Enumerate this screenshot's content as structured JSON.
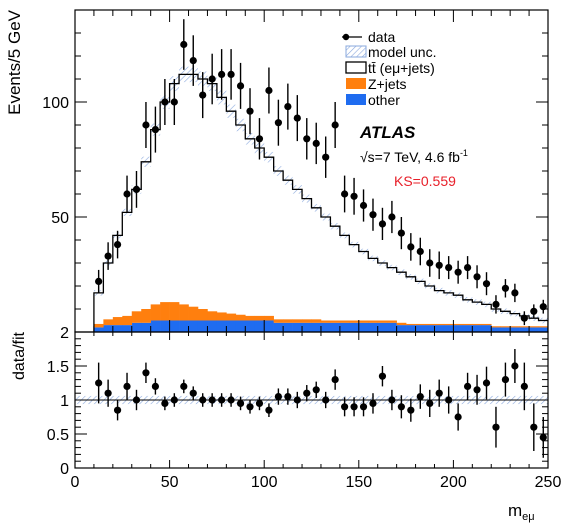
{
  "chart_data": [
    {
      "type": "line",
      "panel": "main",
      "ylabel": "Events/5 GeV",
      "xlim": [
        0,
        250
      ],
      "ylim": [
        0,
        140
      ],
      "yticks": [
        50,
        100
      ],
      "ytick_labels": [
        "50",
        "100"
      ],
      "bin_width": 5,
      "legend_placement": "top-right",
      "legend": [
        {
          "key": "data",
          "label": "data"
        },
        {
          "key": "unc",
          "label": "model unc."
        },
        {
          "key": "ttbar",
          "label": "tt̄ (eμ+jets)"
        },
        {
          "key": "zjets",
          "label": "Z+jets"
        },
        {
          "key": "other",
          "label": "other"
        }
      ],
      "annotations": {
        "experiment": "ATLAS",
        "energy_lumi": "√s=7 TeV, 4.6 fb",
        "lumi_exponent": "-1",
        "ks": "KS=0.559"
      },
      "colors": {
        "zjets": "#ff7f0e",
        "other": "#1f6cf0",
        "unc": "#8aa8dd",
        "data": "#000000"
      },
      "bin_edges_start": 10,
      "model": [
        17,
        30,
        42,
        52,
        62,
        74,
        88,
        100,
        108,
        112,
        112,
        110,
        108,
        102,
        96,
        90,
        84,
        80,
        76,
        70,
        66,
        62,
        58,
        54,
        50,
        46,
        42,
        38,
        35,
        32,
        30,
        28,
        26,
        24,
        22,
        20,
        18,
        17,
        16,
        14,
        13,
        12,
        10,
        9,
        8,
        7,
        6,
        5
      ],
      "zjets": [
        1.5,
        2.5,
        3.5,
        4,
        5,
        6,
        7,
        8,
        8,
        7,
        6,
        5,
        4,
        3.5,
        3,
        2.5,
        2,
        2,
        2,
        1.5,
        1.5,
        1.5,
        1.5,
        1.5,
        1,
        1,
        1,
        1,
        1,
        1,
        1,
        1,
        1,
        0.5,
        0.5,
        0.5,
        0.5,
        0.5,
        0.5,
        0.5,
        0.5,
        0.5,
        0.5,
        0.5,
        0.5,
        0.5,
        0.5,
        0.5
      ],
      "other": [
        2,
        3,
        3,
        3,
        4,
        4,
        5,
        5,
        5,
        5,
        5,
        5,
        5,
        5,
        5,
        5,
        5,
        5,
        5,
        4,
        4,
        4,
        4,
        4,
        4,
        4,
        4,
        4,
        4,
        4,
        4,
        4,
        3,
        3,
        3,
        3,
        3,
        3,
        3,
        3,
        3,
        3,
        2,
        2,
        2,
        2,
        2,
        2
      ],
      "data_points": [
        {
          "x": 12.5,
          "y": 22
        },
        {
          "x": 17.5,
          "y": 33
        },
        {
          "x": 22.5,
          "y": 38
        },
        {
          "x": 27.5,
          "y": 60
        },
        {
          "x": 32.5,
          "y": 62
        },
        {
          "x": 37.5,
          "y": 90
        },
        {
          "x": 42.5,
          "y": 88
        },
        {
          "x": 47.5,
          "y": 100
        },
        {
          "x": 52.5,
          "y": 100
        },
        {
          "x": 57.5,
          "y": 125
        },
        {
          "x": 62.5,
          "y": 118
        },
        {
          "x": 67.5,
          "y": 103
        },
        {
          "x": 72.5,
          "y": 110
        },
        {
          "x": 77.5,
          "y": 112
        },
        {
          "x": 82.5,
          "y": 112
        },
        {
          "x": 87.5,
          "y": 107
        },
        {
          "x": 92.5,
          "y": 96
        },
        {
          "x": 97.5,
          "y": 84
        },
        {
          "x": 102.5,
          "y": 105
        },
        {
          "x": 107.5,
          "y": 91
        },
        {
          "x": 112.5,
          "y": 98
        },
        {
          "x": 117.5,
          "y": 93
        },
        {
          "x": 122.5,
          "y": 84
        },
        {
          "x": 127.5,
          "y": 82
        },
        {
          "x": 132.5,
          "y": 76
        },
        {
          "x": 137.5,
          "y": 90
        },
        {
          "x": 142.5,
          "y": 60
        },
        {
          "x": 147.5,
          "y": 59
        },
        {
          "x": 152.5,
          "y": 55
        },
        {
          "x": 157.5,
          "y": 51
        },
        {
          "x": 162.5,
          "y": 47
        },
        {
          "x": 167.5,
          "y": 50
        },
        {
          "x": 172.5,
          "y": 43
        },
        {
          "x": 177.5,
          "y": 37
        },
        {
          "x": 182.5,
          "y": 35
        },
        {
          "x": 187.5,
          "y": 30
        },
        {
          "x": 192.5,
          "y": 29
        },
        {
          "x": 197.5,
          "y": 28
        },
        {
          "x": 202.5,
          "y": 26
        },
        {
          "x": 207.5,
          "y": 28
        },
        {
          "x": 212.5,
          "y": 24
        },
        {
          "x": 217.5,
          "y": 21
        },
        {
          "x": 222.5,
          "y": 12
        },
        {
          "x": 227.5,
          "y": 19
        },
        {
          "x": 232.5,
          "y": 17
        },
        {
          "x": 237.5,
          "y": 6
        },
        {
          "x": 242.5,
          "y": 9
        },
        {
          "x": 247.5,
          "y": 11
        }
      ],
      "data_errors": [
        5,
        6,
        6,
        8,
        8,
        10,
        10,
        10,
        10,
        11,
        11,
        10,
        11,
        11,
        11,
        10,
        10,
        9,
        10,
        10,
        10,
        10,
        9,
        9,
        9,
        10,
        8,
        8,
        7,
        7,
        7,
        7,
        7,
        6,
        6,
        6,
        6,
        5,
        5,
        5,
        5,
        5,
        4,
        4,
        4,
        3,
        3,
        3
      ]
    },
    {
      "type": "scatter",
      "panel": "ratio",
      "ylabel": "data/fit",
      "xlabel": "m",
      "xlabel_subscript": "eμ",
      "xlim": [
        0,
        250
      ],
      "ylim": [
        0,
        2
      ],
      "yticks": [
        0,
        0.5,
        1,
        1.5,
        2
      ],
      "ytick_labels": [
        "0",
        "0.5",
        "1",
        "1.5",
        "2"
      ],
      "xticks": [
        0,
        50,
        100,
        150,
        200,
        250
      ],
      "xtick_labels": [
        "0",
        "50",
        "100",
        "150",
        "200",
        "250"
      ],
      "ratio_points": [
        {
          "x": 12.5,
          "y": 1.25
        },
        {
          "x": 17.5,
          "y": 1.1
        },
        {
          "x": 22.5,
          "y": 0.85
        },
        {
          "x": 27.5,
          "y": 1.2
        },
        {
          "x": 32.5,
          "y": 1.0
        },
        {
          "x": 37.5,
          "y": 1.4
        },
        {
          "x": 42.5,
          "y": 1.2
        },
        {
          "x": 47.5,
          "y": 0.95
        },
        {
          "x": 52.5,
          "y": 1.0
        },
        {
          "x": 57.5,
          "y": 1.2
        },
        {
          "x": 62.5,
          "y": 1.1
        },
        {
          "x": 67.5,
          "y": 1.0
        },
        {
          "x": 72.5,
          "y": 1.0
        },
        {
          "x": 77.5,
          "y": 1.0
        },
        {
          "x": 82.5,
          "y": 1.0
        },
        {
          "x": 87.5,
          "y": 0.95
        },
        {
          "x": 92.5,
          "y": 0.9
        },
        {
          "x": 97.5,
          "y": 0.95
        },
        {
          "x": 102.5,
          "y": 0.85
        },
        {
          "x": 107.5,
          "y": 1.05
        },
        {
          "x": 112.5,
          "y": 1.05
        },
        {
          "x": 117.5,
          "y": 1.0
        },
        {
          "x": 122.5,
          "y": 1.1
        },
        {
          "x": 127.5,
          "y": 1.15
        },
        {
          "x": 132.5,
          "y": 1.0
        },
        {
          "x": 137.5,
          "y": 1.3
        },
        {
          "x": 142.5,
          "y": 0.9
        },
        {
          "x": 147.5,
          "y": 0.9
        },
        {
          "x": 152.5,
          "y": 0.9
        },
        {
          "x": 157.5,
          "y": 0.95
        },
        {
          "x": 162.5,
          "y": 1.35
        },
        {
          "x": 167.5,
          "y": 1.0
        },
        {
          "x": 172.5,
          "y": 0.9
        },
        {
          "x": 177.5,
          "y": 0.85
        },
        {
          "x": 182.5,
          "y": 1.05
        },
        {
          "x": 187.5,
          "y": 0.95
        },
        {
          "x": 192.5,
          "y": 1.1
        },
        {
          "x": 197.5,
          "y": 1.0
        },
        {
          "x": 202.5,
          "y": 0.75
        },
        {
          "x": 207.5,
          "y": 1.2
        },
        {
          "x": 212.5,
          "y": 1.15
        },
        {
          "x": 217.5,
          "y": 1.25
        },
        {
          "x": 222.5,
          "y": 0.6
        },
        {
          "x": 227.5,
          "y": 1.3
        },
        {
          "x": 232.5,
          "y": 1.5
        },
        {
          "x": 237.5,
          "y": 1.2
        },
        {
          "x": 242.5,
          "y": 0.6
        },
        {
          "x": 247.5,
          "y": 0.45
        }
      ],
      "ratio_errors": [
        0.3,
        0.2,
        0.15,
        0.2,
        0.15,
        0.15,
        0.12,
        0.1,
        0.1,
        0.1,
        0.1,
        0.1,
        0.1,
        0.1,
        0.1,
        0.1,
        0.1,
        0.1,
        0.1,
        0.12,
        0.12,
        0.12,
        0.12,
        0.12,
        0.12,
        0.15,
        0.14,
        0.14,
        0.14,
        0.15,
        0.15,
        0.15,
        0.17,
        0.17,
        0.18,
        0.2,
        0.2,
        0.2,
        0.2,
        0.2,
        0.22,
        0.24,
        0.3,
        0.25,
        0.25,
        0.35,
        0.35,
        0.3
      ],
      "unc_band": [
        0.06,
        0.06
      ]
    }
  ]
}
